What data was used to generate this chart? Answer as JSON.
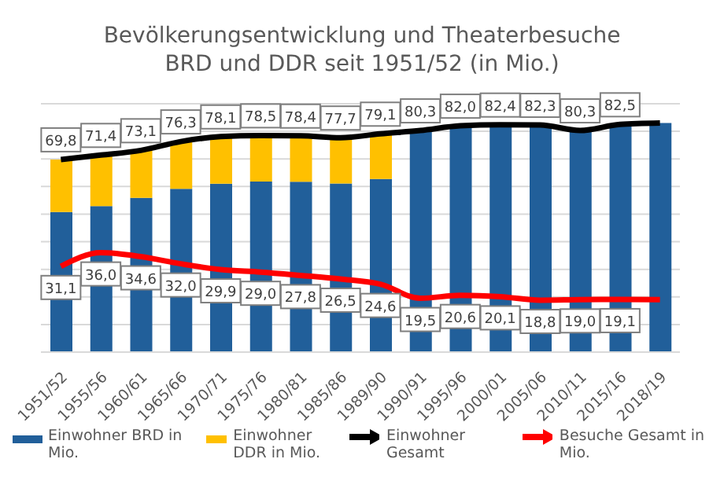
{
  "chart_data": {
    "type": "bar",
    "title": "Bevölkerungsentwicklung und Theaterbesuche\nBRD und DDR seit 1951/52 (in Mio.)",
    "categories": [
      "1951/52",
      "1955/56",
      "1960/61",
      "1965/66",
      "1970/71",
      "1975/76",
      "1980/81",
      "1985/86",
      "1989/90",
      "1990/91",
      "1995/96",
      "2000/01",
      "2005/06",
      "2010/11",
      "2015/16",
      "2018/19"
    ],
    "stacked": true,
    "ylim": [
      0,
      90
    ],
    "yticks": [
      {
        "value": 0,
        "label": null
      },
      {
        "value": 10,
        "label": null
      },
      {
        "value": 20,
        "label": null
      },
      {
        "value": 30,
        "label": null
      },
      {
        "value": 40,
        "label": null
      },
      {
        "value": 50,
        "label": null
      },
      {
        "value": 60,
        "label": null
      },
      {
        "value": 70,
        "label": null
      },
      {
        "value": 80,
        "label": null
      },
      {
        "value": 90,
        "label": null
      }
    ],
    "tick_labels": "x",
    "grid": "y",
    "legend": "bottom",
    "marker": "none",
    "line_style": "solid",
    "series": [
      {
        "name": "Einwohner BRD in Mio.",
        "color": "#215f9a",
        "values": [
          50.8,
          52.9,
          55.9,
          59.2,
          61.0,
          61.8,
          61.7,
          61.1,
          62.7,
          80.3,
          82.0,
          82.4,
          82.3,
          80.3,
          82.5,
          83.0
        ]
      },
      {
        "name": "Einwohner DDR in Mio.",
        "color": "#ffc000",
        "values": [
          19.0,
          18.5,
          17.2,
          17.1,
          17.1,
          16.7,
          16.7,
          16.6,
          16.4,
          null,
          null,
          null,
          null,
          null,
          null,
          null
        ]
      },
      {
        "name": "Einwohner Gesamt",
        "type": "line",
        "color": "#000000",
        "values": [
          69.8,
          71.4,
          73.1,
          76.3,
          78.1,
          78.5,
          78.4,
          77.7,
          79.1,
          80.3,
          82.0,
          82.4,
          82.3,
          80.3,
          82.5,
          83.0
        ],
        "value_labels": [
          "69,8",
          "71,4",
          "73,1",
          "76,3",
          "78,1",
          "78,5",
          "78,4",
          "77,7",
          "79,1",
          "80,3",
          "82,0",
          "82,4",
          "82,3",
          "80,3",
          "82,5",
          null
        ]
      },
      {
        "name": "Besuche Gesamt in Mio.",
        "type": "line",
        "color": "#ff0000",
        "values": [
          31.1,
          36.0,
          34.6,
          32.0,
          29.9,
          29.0,
          27.8,
          26.5,
          24.6,
          19.5,
          20.6,
          20.1,
          18.8,
          19.0,
          19.1,
          19.0
        ],
        "value_labels": [
          "31,1",
          "36,0",
          "34,6",
          "32,0",
          "29,9",
          "29,0",
          "27,8",
          "26,5",
          "24,6",
          "19,5",
          "20,6",
          "20,1",
          "18,8",
          "19,0",
          "19,1",
          null
        ]
      }
    ]
  }
}
